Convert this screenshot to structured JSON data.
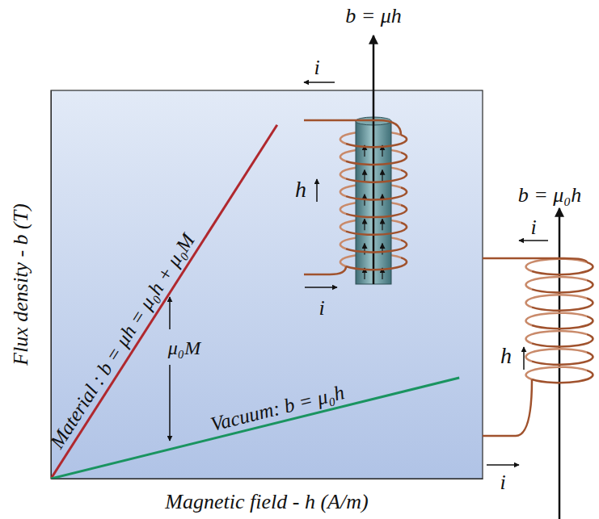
{
  "chart_data": {
    "type": "line",
    "x_label": "Magnetic field - h (A/m)",
    "y_label": "Flux density - b (T)",
    "xlim": [
      0,
      100
    ],
    "ylim": [
      0,
      100
    ],
    "xticks": [],
    "yticks": [],
    "tick_labels": false,
    "grid": false,
    "series": [
      {
        "label": "Material : b = μh = μ₀h + μ₀M",
        "color": "#b0282e",
        "x": [
          0,
          52.4
        ],
        "values": [
          0,
          91.1
        ]
      },
      {
        "label": "Vacuum: b = μ₀h",
        "color": "#1a9460",
        "x": [
          0,
          94.6
        ],
        "values": [
          0,
          26.0
        ]
      }
    ],
    "annotations": [
      "μ₀M"
    ],
    "coils": [
      {
        "field_label": "b = μh",
        "h_label": "h",
        "current_labels": [
          "i",
          "i"
        ]
      },
      {
        "field_label": "b = μ₀h",
        "h_label": "h",
        "current_labels": [
          "i",
          "i"
        ]
      }
    ]
  }
}
